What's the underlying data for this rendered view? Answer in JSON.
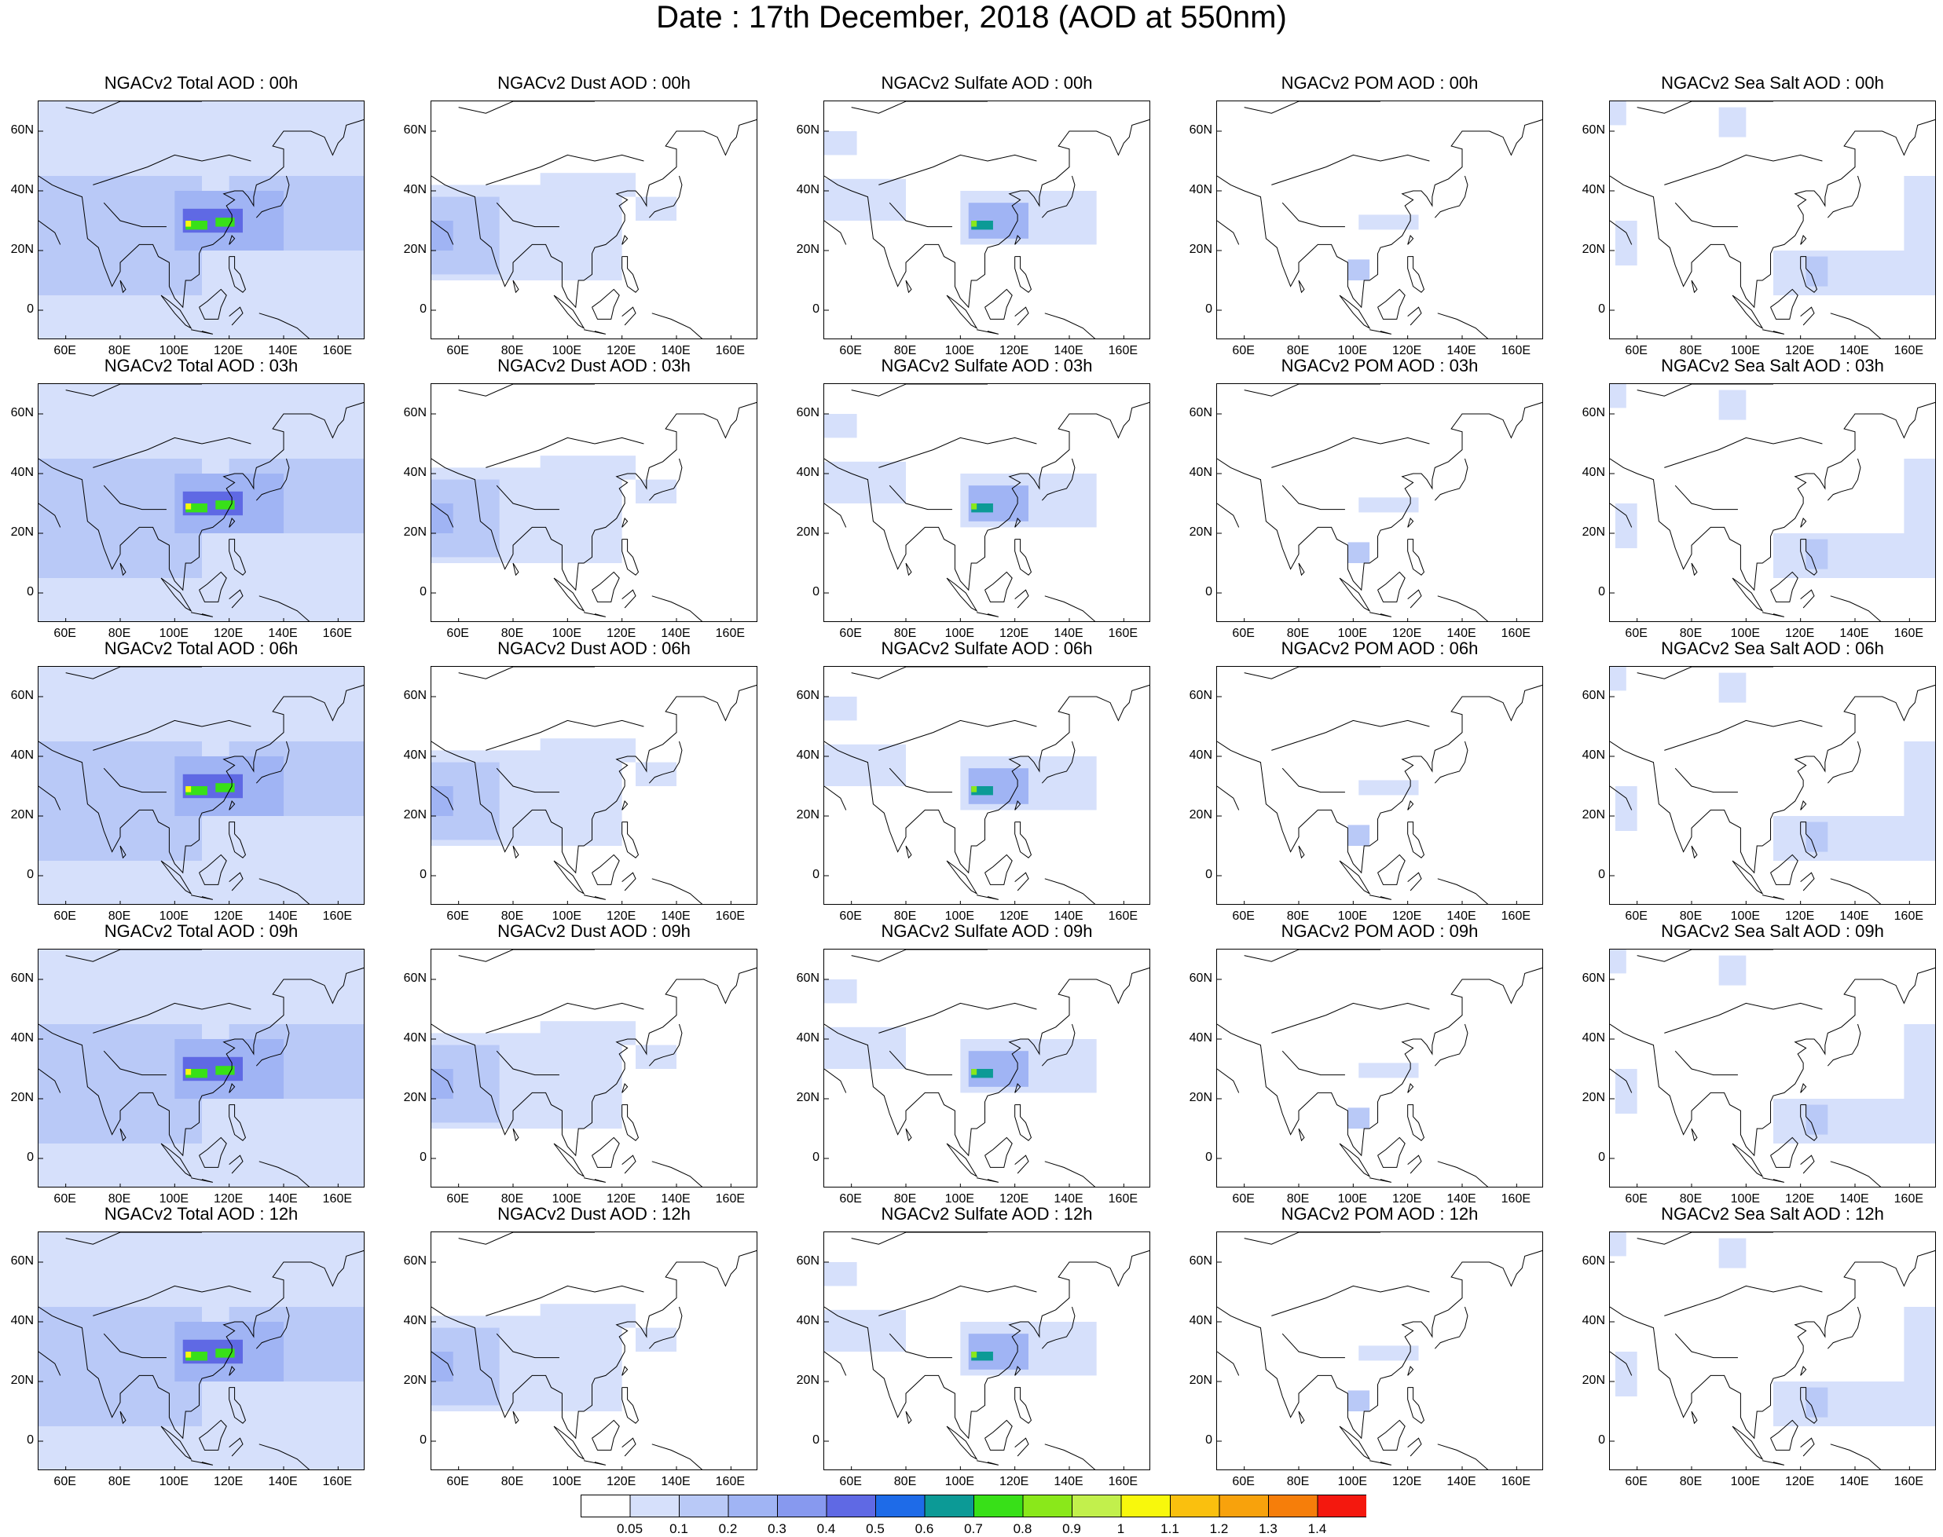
{
  "page_title": "Date : 17th December, 2018 (AOD at 550nm)",
  "chart_data": {
    "type": "heatmap",
    "title": "Date : 17th December, 2018 (AOD at 550nm)",
    "xlim": [
      50,
      170
    ],
    "ylim": [
      -10,
      70
    ],
    "x_ticks": [
      "60E",
      "80E",
      "100E",
      "120E",
      "140E",
      "160E"
    ],
    "y_ticks": [
      "60N",
      "40N",
      "20N",
      "0"
    ],
    "x_tick_values": [
      60,
      80,
      100,
      120,
      140,
      160
    ],
    "y_tick_values": [
      60,
      40,
      20,
      0
    ],
    "colorbar": {
      "labels": [
        "0.05",
        "0.1",
        "0.2",
        "0.3",
        "0.4",
        "0.5",
        "0.6",
        "0.7",
        "0.8",
        "0.9",
        "1",
        "1.1",
        "1.2",
        "1.3",
        "1.4"
      ],
      "colors": [
        "#ffffff",
        "#d6e0fb",
        "#b9c9f7",
        "#a0b4f4",
        "#8799ef",
        "#5f69e4",
        "#1e6be8",
        "#0c9a96",
        "#38e018",
        "#8ae81a",
        "#c2f04c",
        "#f8f80c",
        "#fac00e",
        "#f8a20c",
        "#f67e0a",
        "#f4180e"
      ]
    },
    "panels": [
      {
        "title": "NGACv2 Total AOD : 00h",
        "species": "total",
        "hour": 0
      },
      {
        "title": "NGACv2 Dust AOD : 00h",
        "species": "dust",
        "hour": 0
      },
      {
        "title": "NGACv2 Sulfate AOD : 00h",
        "species": "sulfate",
        "hour": 0
      },
      {
        "title": "NGACv2 POM AOD : 00h",
        "species": "pom",
        "hour": 0
      },
      {
        "title": "NGACv2 Sea Salt AOD : 00h",
        "species": "seasalt",
        "hour": 0
      },
      {
        "title": "NGACv2 Total AOD : 03h",
        "species": "total",
        "hour": 3
      },
      {
        "title": "NGACv2 Dust AOD : 03h",
        "species": "dust",
        "hour": 3
      },
      {
        "title": "NGACv2 Sulfate AOD : 03h",
        "species": "sulfate",
        "hour": 3
      },
      {
        "title": "NGACv2 POM AOD : 03h",
        "species": "pom",
        "hour": 3
      },
      {
        "title": "NGACv2 Sea Salt AOD : 03h",
        "species": "seasalt",
        "hour": 3
      },
      {
        "title": "NGACv2 Total AOD : 06h",
        "species": "total",
        "hour": 6
      },
      {
        "title": "NGACv2 Dust AOD : 06h",
        "species": "dust",
        "hour": 6
      },
      {
        "title": "NGACv2 Sulfate AOD : 06h",
        "species": "sulfate",
        "hour": 6
      },
      {
        "title": "NGACv2 POM AOD : 06h",
        "species": "pom",
        "hour": 6
      },
      {
        "title": "NGACv2 Sea Salt AOD : 06h",
        "species": "seasalt",
        "hour": 6
      },
      {
        "title": "NGACv2 Total AOD : 09h",
        "species": "total",
        "hour": 9
      },
      {
        "title": "NGACv2 Dust AOD : 09h",
        "species": "dust",
        "hour": 9
      },
      {
        "title": "NGACv2 Sulfate AOD : 09h",
        "species": "sulfate",
        "hour": 9
      },
      {
        "title": "NGACv2 POM AOD : 09h",
        "species": "pom",
        "hour": 9
      },
      {
        "title": "NGACv2 Sea Salt  AOD : 09h",
        "species": "seasalt",
        "hour": 9
      },
      {
        "title": "NGACv2 Total AOD  : 12h",
        "species": "total",
        "hour": 12
      },
      {
        "title": "NGACv2 Dust AOD : 12h",
        "species": "dust",
        "hour": 12
      },
      {
        "title": "NGACv2 Sulfate AOD : 12h",
        "species": "sulfate",
        "hour": 12
      },
      {
        "title": "NGACv2 POM  AOD : 12h",
        "species": "pom",
        "hour": 12
      },
      {
        "title": "NGACv2 Sea Salt  AOD : 12h",
        "species": "seasalt",
        "hour": 12
      }
    ],
    "fields": {
      "total": [
        {
          "lon": [
            50,
            170
          ],
          "lat": [
            -10,
            70
          ],
          "level": 1
        },
        {
          "lon": [
            50,
            110
          ],
          "lat": [
            5,
            45
          ],
          "level": 2
        },
        {
          "lon": [
            120,
            170
          ],
          "lat": [
            20,
            45
          ],
          "level": 2
        },
        {
          "lon": [
            100,
            140
          ],
          "lat": [
            20,
            40
          ],
          "level": 3
        },
        {
          "lon": [
            103,
            125
          ],
          "lat": [
            26,
            34
          ],
          "level": 5
        },
        {
          "lon": [
            104,
            112
          ],
          "lat": [
            27,
            30
          ],
          "level": 8
        },
        {
          "lon": [
            115,
            122
          ],
          "lat": [
            28,
            31
          ],
          "level": 8
        },
        {
          "lon": [
            104,
            106
          ],
          "lat": [
            28,
            30
          ],
          "level": 11
        }
      ],
      "dust": [
        {
          "lon": [
            50,
            120
          ],
          "lat": [
            10,
            42
          ],
          "level": 1
        },
        {
          "lon": [
            90,
            125
          ],
          "lat": [
            38,
            46
          ],
          "level": 1
        },
        {
          "lon": [
            125,
            140
          ],
          "lat": [
            30,
            38
          ],
          "level": 1
        },
        {
          "lon": [
            50,
            75
          ],
          "lat": [
            12,
            38
          ],
          "level": 2
        },
        {
          "lon": [
            50,
            58
          ],
          "lat": [
            20,
            30
          ],
          "level": 3
        }
      ],
      "sulfate": [
        {
          "lon": [
            50,
            62
          ],
          "lat": [
            52,
            60
          ],
          "level": 1
        },
        {
          "lon": [
            100,
            150
          ],
          "lat": [
            22,
            40
          ],
          "level": 1
        },
        {
          "lon": [
            50,
            80
          ],
          "lat": [
            30,
            44
          ],
          "level": 1
        },
        {
          "lon": [
            103,
            125
          ],
          "lat": [
            24,
            36
          ],
          "level": 3
        },
        {
          "lon": [
            104,
            112
          ],
          "lat": [
            27,
            30
          ],
          "level": 7
        },
        {
          "lon": [
            104,
            106
          ],
          "lat": [
            28,
            30
          ],
          "level": 9
        }
      ],
      "pom": [
        {
          "lon": [
            102,
            124
          ],
          "lat": [
            27,
            32
          ],
          "level": 1
        },
        {
          "lon": [
            98,
            106
          ],
          "lat": [
            10,
            17
          ],
          "level": 2
        }
      ],
      "seasalt": [
        {
          "lon": [
            50,
            56
          ],
          "lat": [
            62,
            70
          ],
          "level": 1
        },
        {
          "lon": [
            90,
            100
          ],
          "lat": [
            58,
            68
          ],
          "level": 1
        },
        {
          "lon": [
            110,
            170
          ],
          "lat": [
            5,
            20
          ],
          "level": 1
        },
        {
          "lon": [
            52,
            60
          ],
          "lat": [
            15,
            30
          ],
          "level": 1
        },
        {
          "lon": [
            122,
            130
          ],
          "lat": [
            8,
            18
          ],
          "level": 2
        },
        {
          "lon": [
            158,
            170
          ],
          "lat": [
            20,
            45
          ],
          "level": 1
        }
      ]
    }
  }
}
